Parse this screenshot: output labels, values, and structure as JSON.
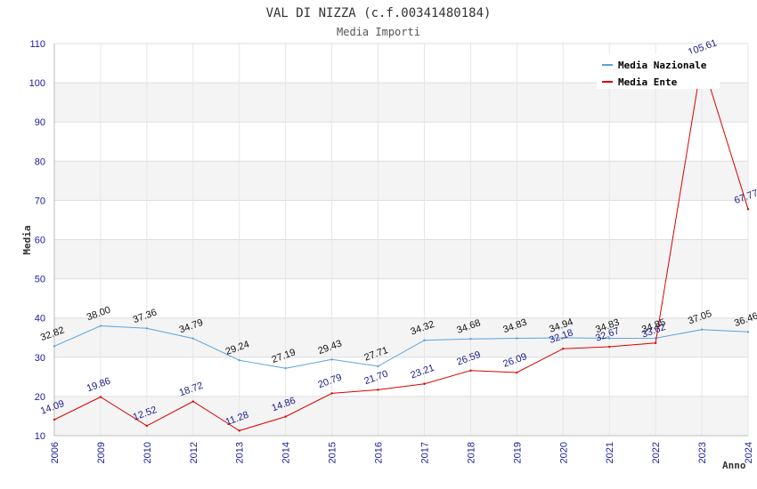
{
  "chart_data": {
    "type": "line",
    "title": "VAL DI NIZZA (c.f.00341480184)",
    "subtitle": "Media Importi",
    "xlabel": "Anno",
    "ylabel": "Media",
    "ylim": [
      10,
      110
    ],
    "yticks": [
      10,
      20,
      30,
      40,
      50,
      60,
      70,
      80,
      90,
      100,
      110
    ],
    "categories": [
      "2006",
      "2009",
      "2010",
      "2012",
      "2013",
      "2014",
      "2015",
      "2016",
      "2017",
      "2018",
      "2019",
      "2020",
      "2021",
      "2022",
      "2023",
      "2024"
    ],
    "series": [
      {
        "name": "Media Nazionale",
        "color": "#5ba3dc",
        "values": [
          32.82,
          38.0,
          37.36,
          34.79,
          29.24,
          27.19,
          29.43,
          27.71,
          34.32,
          34.68,
          34.83,
          34.94,
          34.83,
          34.85,
          37.05,
          36.46
        ],
        "labels": [
          "32.82",
          "38.00",
          "37.36",
          "34.79",
          "29.24",
          "27.19",
          "29.43",
          "27.71",
          "34.32",
          "34.68",
          "34.83",
          "34.94",
          "34.83",
          "34.85",
          "37.05",
          "36.46"
        ]
      },
      {
        "name": "Media Ente",
        "color": "#dd0000",
        "values": [
          14.09,
          19.86,
          12.52,
          18.72,
          11.28,
          14.86,
          20.79,
          21.7,
          23.21,
          26.59,
          26.09,
          32.18,
          32.67,
          33.62,
          105.61,
          67.77
        ],
        "labels": [
          "14.09",
          "19.86",
          "12.52",
          "18.72",
          "11.28",
          "14.86",
          "20.79",
          "21.70",
          "23.21",
          "26.59",
          "26.09",
          "32.18",
          "32.67",
          "33.62",
          "105.61",
          "67.77"
        ]
      }
    ],
    "legend": {
      "position": "top-right",
      "entries": [
        "Media Nazionale",
        "Media Ente"
      ]
    },
    "grid": true
  }
}
